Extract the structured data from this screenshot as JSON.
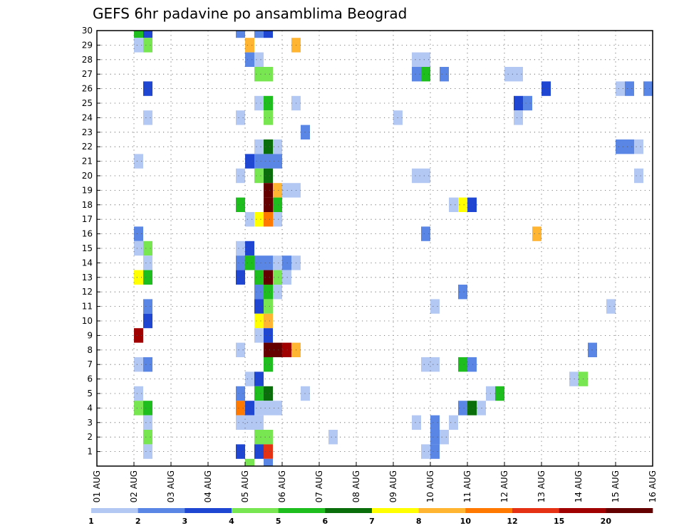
{
  "chart_data": {
    "type": "heatmap",
    "title": "GEFS 6hr padavine po ansamblima Beograd",
    "xlabel": "",
    "ylabel": "",
    "x_tick_labels": [
      "01 AUG",
      "02 AUG",
      "03 AUG",
      "04 AUG",
      "05 AUG",
      "06 AUG",
      "07 AUG",
      "08 AUG",
      "09 AUG",
      "10 AUG",
      "11 AUG",
      "12 AUG",
      "13 AUG",
      "14 AUG",
      "15 AUG",
      "16 AUG"
    ],
    "x_range_steps": [
      0,
      60
    ],
    "y_tick_labels": [
      "1",
      "2",
      "3",
      "4",
      "5",
      "6",
      "7",
      "8",
      "9",
      "10",
      "11",
      "12",
      "13",
      "14",
      "15",
      "16",
      "17",
      "18",
      "19",
      "20",
      "21",
      "22",
      "23",
      "24",
      "25",
      "26",
      "27",
      "28",
      "29",
      "30"
    ],
    "y_range_members": [
      0,
      30
    ],
    "grid": true,
    "legend": "bottom-colorbar",
    "colorbar": {
      "labels": [
        "1",
        "2",
        "3",
        "4",
        "5",
        "6",
        "7",
        "8",
        "10",
        "12",
        "15",
        "20"
      ],
      "colors": [
        "#b4c8f4",
        "#5a87e6",
        "#1e46d2",
        "#78e650",
        "#1ebe1e",
        "#0a6e0a",
        "#ffff00",
        "#ffb432",
        "#ff7800",
        "#e63214",
        "#a00000",
        "#640000"
      ]
    },
    "cells_format": "[step, member, color_index]",
    "cells": [
      [
        4,
        30,
        4
      ],
      [
        5,
        30,
        2
      ],
      [
        15,
        30,
        1
      ],
      [
        17,
        30,
        1
      ],
      [
        18,
        30,
        2
      ],
      [
        4,
        29,
        0
      ],
      [
        5,
        29,
        3
      ],
      [
        16,
        29,
        7
      ],
      [
        21,
        29,
        7
      ],
      [
        16,
        28,
        1
      ],
      [
        17,
        28,
        0
      ],
      [
        34,
        28,
        0
      ],
      [
        35,
        28,
        0
      ],
      [
        17,
        27,
        3
      ],
      [
        18,
        27,
        3
      ],
      [
        34,
        27,
        1
      ],
      [
        35,
        27,
        4
      ],
      [
        37,
        27,
        1
      ],
      [
        44,
        27,
        0
      ],
      [
        45,
        27,
        0
      ],
      [
        5,
        26,
        2
      ],
      [
        48,
        26,
        2
      ],
      [
        56,
        26,
        0
      ],
      [
        57,
        26,
        1
      ],
      [
        59,
        26,
        1
      ],
      [
        17,
        25,
        0
      ],
      [
        18,
        25,
        4
      ],
      [
        21,
        25,
        0
      ],
      [
        45,
        25,
        2
      ],
      [
        46,
        25,
        1
      ],
      [
        5,
        24,
        0
      ],
      [
        15,
        24,
        0
      ],
      [
        18,
        24,
        3
      ],
      [
        32,
        24,
        0
      ],
      [
        45,
        24,
        0
      ],
      [
        22,
        23,
        1
      ],
      [
        17,
        22,
        0
      ],
      [
        18,
        22,
        5
      ],
      [
        19,
        22,
        0
      ],
      [
        56,
        22,
        1
      ],
      [
        57,
        22,
        1
      ],
      [
        58,
        22,
        0
      ],
      [
        4,
        21,
        0
      ],
      [
        16,
        21,
        2
      ],
      [
        17,
        21,
        1
      ],
      [
        18,
        21,
        1
      ],
      [
        19,
        21,
        1
      ],
      [
        15,
        20,
        0
      ],
      [
        17,
        20,
        3
      ],
      [
        18,
        20,
        5
      ],
      [
        34,
        20,
        0
      ],
      [
        35,
        20,
        0
      ],
      [
        58,
        20,
        0
      ],
      [
        18,
        19,
        11
      ],
      [
        19,
        19,
        7
      ],
      [
        20,
        19,
        0
      ],
      [
        21,
        19,
        0
      ],
      [
        15,
        18,
        4
      ],
      [
        18,
        18,
        11
      ],
      [
        19,
        18,
        4
      ],
      [
        38,
        18,
        0
      ],
      [
        39,
        18,
        6
      ],
      [
        40,
        18,
        2
      ],
      [
        16,
        17,
        0
      ],
      [
        17,
        17,
        6
      ],
      [
        18,
        17,
        8
      ],
      [
        19,
        17,
        0
      ],
      [
        4,
        16,
        1
      ],
      [
        35,
        16,
        1
      ],
      [
        47,
        16,
        7
      ],
      [
        4,
        15,
        0
      ],
      [
        5,
        15,
        3
      ],
      [
        15,
        15,
        0
      ],
      [
        16,
        15,
        2
      ],
      [
        5,
        14,
        0
      ],
      [
        15,
        14,
        1
      ],
      [
        16,
        14,
        4
      ],
      [
        17,
        14,
        1
      ],
      [
        18,
        14,
        1
      ],
      [
        19,
        14,
        0
      ],
      [
        20,
        14,
        1
      ],
      [
        21,
        14,
        0
      ],
      [
        4,
        13,
        6
      ],
      [
        5,
        13,
        4
      ],
      [
        15,
        13,
        2
      ],
      [
        17,
        13,
        4
      ],
      [
        18,
        13,
        11
      ],
      [
        19,
        13,
        3
      ],
      [
        20,
        13,
        0
      ],
      [
        17,
        12,
        1
      ],
      [
        18,
        12,
        4
      ],
      [
        19,
        12,
        0
      ],
      [
        39,
        12,
        1
      ],
      [
        5,
        11,
        1
      ],
      [
        17,
        11,
        2
      ],
      [
        18,
        11,
        3
      ],
      [
        36,
        11,
        0
      ],
      [
        55,
        11,
        0
      ],
      [
        5,
        10,
        2
      ],
      [
        17,
        10,
        6
      ],
      [
        18,
        10,
        7
      ],
      [
        4,
        9,
        10
      ],
      [
        17,
        9,
        0
      ],
      [
        18,
        9,
        2
      ],
      [
        15,
        8,
        0
      ],
      [
        18,
        8,
        11
      ],
      [
        19,
        8,
        11
      ],
      [
        20,
        8,
        10
      ],
      [
        21,
        8,
        7
      ],
      [
        53,
        8,
        1
      ],
      [
        4,
        7,
        0
      ],
      [
        5,
        7,
        1
      ],
      [
        18,
        7,
        4
      ],
      [
        35,
        7,
        0
      ],
      [
        36,
        7,
        0
      ],
      [
        39,
        7,
        4
      ],
      [
        40,
        7,
        1
      ],
      [
        16,
        6,
        0
      ],
      [
        17,
        6,
        2
      ],
      [
        51,
        6,
        0
      ],
      [
        52,
        6,
        3
      ],
      [
        4,
        5,
        0
      ],
      [
        15,
        5,
        1
      ],
      [
        17,
        5,
        4
      ],
      [
        18,
        5,
        5
      ],
      [
        22,
        5,
        0
      ],
      [
        42,
        5,
        0
      ],
      [
        43,
        5,
        4
      ],
      [
        4,
        4,
        3
      ],
      [
        5,
        4,
        4
      ],
      [
        15,
        4,
        8
      ],
      [
        16,
        4,
        2
      ],
      [
        17,
        4,
        0
      ],
      [
        18,
        4,
        0
      ],
      [
        19,
        4,
        0
      ],
      [
        39,
        4,
        1
      ],
      [
        40,
        4,
        5
      ],
      [
        41,
        4,
        0
      ],
      [
        5,
        3,
        0
      ],
      [
        15,
        3,
        0
      ],
      [
        16,
        3,
        0
      ],
      [
        17,
        3,
        0
      ],
      [
        34,
        3,
        0
      ],
      [
        36,
        3,
        1
      ],
      [
        38,
        3,
        0
      ],
      [
        5,
        2,
        3
      ],
      [
        17,
        2,
        3
      ],
      [
        18,
        2,
        3
      ],
      [
        25,
        2,
        0
      ],
      [
        36,
        2,
        1
      ],
      [
        37,
        2,
        0
      ],
      [
        5,
        1,
        0
      ],
      [
        15,
        1,
        2
      ],
      [
        17,
        1,
        2
      ],
      [
        18,
        1,
        9
      ],
      [
        35,
        1,
        0
      ],
      [
        36,
        1,
        1
      ],
      [
        16,
        0,
        3
      ],
      [
        18,
        0,
        1
      ]
    ]
  }
}
